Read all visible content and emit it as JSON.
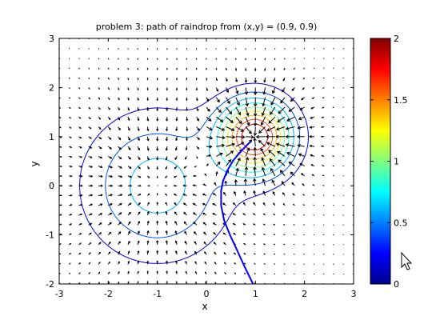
{
  "chart_data": {
    "type": "contour",
    "title": "problem 3: path of raindrop from (x,y) = (0.9, 0.9)",
    "xlabel": "x",
    "ylabel": "y",
    "xlim": [
      -3,
      3
    ],
    "ylim": [
      -2,
      3
    ],
    "xticks": [
      -3,
      -2,
      -1,
      0,
      1,
      2,
      3
    ],
    "yticks": [
      -2,
      -1,
      0,
      1,
      2,
      3
    ],
    "grid": false,
    "surface": {
      "peaks": [
        {
          "x": -1,
          "y": 0,
          "height": 0.7,
          "spread": 1.0
        },
        {
          "x": 1,
          "y": 1,
          "height": 2.0,
          "spread": 0.5
        }
      ]
    },
    "contour_levels": [
      0.2,
      0.4,
      0.6,
      0.8,
      1.0,
      1.2,
      1.4,
      1.6,
      1.8
    ],
    "quiver_grid": {
      "xmin": -3,
      "xmax": 3,
      "ymin": -2,
      "ymax": 3,
      "step": 0.2
    },
    "path": {
      "start": [
        0.9,
        0.9
      ],
      "points": [
        [
          0.9,
          0.9
        ],
        [
          0.72,
          0.72
        ],
        [
          0.55,
          0.52
        ],
        [
          0.42,
          0.3
        ],
        [
          0.34,
          0.1
        ],
        [
          0.3,
          -0.1
        ],
        [
          0.3,
          -0.4
        ],
        [
          0.36,
          -0.7
        ],
        [
          0.48,
          -1.0
        ],
        [
          0.62,
          -1.3
        ],
        [
          0.78,
          -1.65
        ],
        [
          0.95,
          -2.0
        ]
      ],
      "color": "#0000ff"
    },
    "colorbar": {
      "min": 0,
      "max": 2,
      "ticks": [
        0,
        0.5,
        1,
        1.5,
        2
      ],
      "tick_labels": [
        "0",
        "0.5",
        "1",
        "1.5",
        "2"
      ]
    }
  }
}
